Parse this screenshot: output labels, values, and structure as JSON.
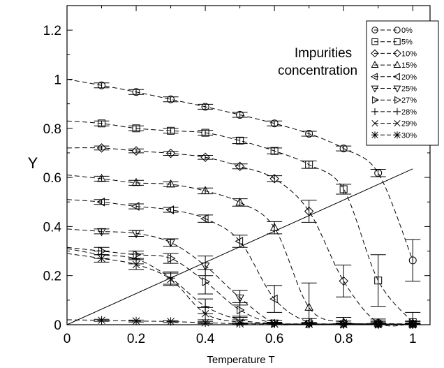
{
  "chart_data": {
    "type": "line",
    "xlabel": "Temperature  T",
    "ylabel": "Y",
    "xlim": [
      0,
      1.05
    ],
    "ylim": [
      0,
      1.3
    ],
    "xticks": [
      "0",
      "0.2",
      "0.4",
      "0.6",
      "0.8",
      "1"
    ],
    "yticks": [
      "0",
      "0.2",
      "0.4",
      "0.6",
      "0.8",
      "1",
      "1.2"
    ],
    "grid": false,
    "legend_position": "top-right",
    "annotation": [
      "Impurities",
      "concentration"
    ],
    "x": [
      0.1,
      0.2,
      0.3,
      0.4,
      0.5,
      0.6,
      0.7,
      0.8,
      0.9,
      1.0
    ],
    "series": [
      {
        "name": "0%",
        "marker": "circle",
        "start": 1.0,
        "values": [
          0.975,
          0.948,
          0.918,
          0.888,
          0.855,
          0.82,
          0.778,
          0.718,
          0.618,
          0.262
        ],
        "errors": [
          0.01,
          0.01,
          0.01,
          0.01,
          0.01,
          0.01,
          0.01,
          0.01,
          0.015,
          0.085
        ]
      },
      {
        "name": "5%",
        "marker": "square",
        "start": 0.83,
        "values": [
          0.82,
          0.8,
          0.79,
          0.782,
          0.75,
          0.708,
          0.652,
          0.552,
          0.18,
          0.01
        ],
        "errors": [
          0.01,
          0.01,
          0.01,
          0.01,
          0.012,
          0.012,
          0.015,
          0.02,
          0.105,
          0.04
        ]
      },
      {
        "name": "10%",
        "marker": "diamond",
        "start": 0.72,
        "values": [
          0.72,
          0.708,
          0.698,
          0.682,
          0.645,
          0.595,
          0.462,
          0.178,
          0.008,
          0.005
        ],
        "errors": [
          0.008,
          0.008,
          0.008,
          0.008,
          0.01,
          0.012,
          0.045,
          0.065,
          0.015,
          0.01
        ]
      },
      {
        "name": "15%",
        "marker": "triangle-up",
        "start": 0.61,
        "values": [
          0.595,
          0.578,
          0.572,
          0.545,
          0.498,
          0.395,
          0.07,
          0.01,
          0.005,
          0.003
        ],
        "errors": [
          0.01,
          0.01,
          0.01,
          0.012,
          0.015,
          0.025,
          0.1,
          0.02,
          0.01,
          0.01
        ]
      },
      {
        "name": "20%",
        "marker": "triangle-left",
        "start": 0.51,
        "values": [
          0.5,
          0.482,
          0.468,
          0.432,
          0.34,
          0.105,
          0.01,
          0.005,
          0.003,
          0.002
        ],
        "errors": [
          0.01,
          0.01,
          0.01,
          0.015,
          0.025,
          0.055,
          0.015,
          0.01,
          0.008,
          0.005
        ]
      },
      {
        "name": "25%",
        "marker": "triangle-down",
        "start": 0.39,
        "values": [
          0.38,
          0.372,
          0.335,
          0.24,
          0.11,
          0.008,
          0.004,
          0.003,
          0.002,
          0.002
        ],
        "errors": [
          0.01,
          0.012,
          0.015,
          0.04,
          0.03,
          0.01,
          0.005,
          0.004,
          0.004,
          0.003
        ]
      },
      {
        "name": "27%",
        "marker": "triangle-right",
        "start": 0.315,
        "values": [
          0.3,
          0.285,
          0.27,
          0.175,
          0.06,
          0.005,
          0.003,
          0.002,
          0.002,
          0.001
        ],
        "errors": [
          0.015,
          0.015,
          0.02,
          0.05,
          0.03,
          0.005,
          0.004,
          0.003,
          0.003,
          0.002
        ]
      },
      {
        "name": "28%",
        "marker": "plus",
        "start": 0.31,
        "values": [
          0.285,
          0.268,
          0.19,
          0.075,
          0.02,
          0.005,
          0.003,
          0.002,
          0.002,
          0.001
        ],
        "errors": [
          0.015,
          0.02,
          0.025,
          0.03,
          0.015,
          0.005,
          0.004,
          0.003,
          0.003,
          0.002
        ]
      },
      {
        "name": "29%",
        "marker": "cross",
        "start": 0.29,
        "values": [
          0.27,
          0.245,
          0.185,
          0.045,
          0.01,
          0.004,
          0.003,
          0.002,
          0.001,
          0.001
        ],
        "errors": [
          0.015,
          0.02,
          0.025,
          0.025,
          0.01,
          0.005,
          0.004,
          0.003,
          0.002,
          0.002
        ]
      },
      {
        "name": "30%",
        "marker": "star",
        "start": 0.02,
        "values": [
          0.018,
          0.015,
          0.013,
          0.008,
          0.004,
          0.003,
          0.002,
          0.001,
          0.001,
          0.001
        ],
        "errors": [
          0.004,
          0.004,
          0.004,
          0.004,
          0.003,
          0.003,
          0.002,
          0.002,
          0.002,
          0.002
        ]
      }
    ],
    "reference_line": {
      "x": [
        0,
        1.0
      ],
      "y": [
        0,
        0.635
      ]
    }
  }
}
